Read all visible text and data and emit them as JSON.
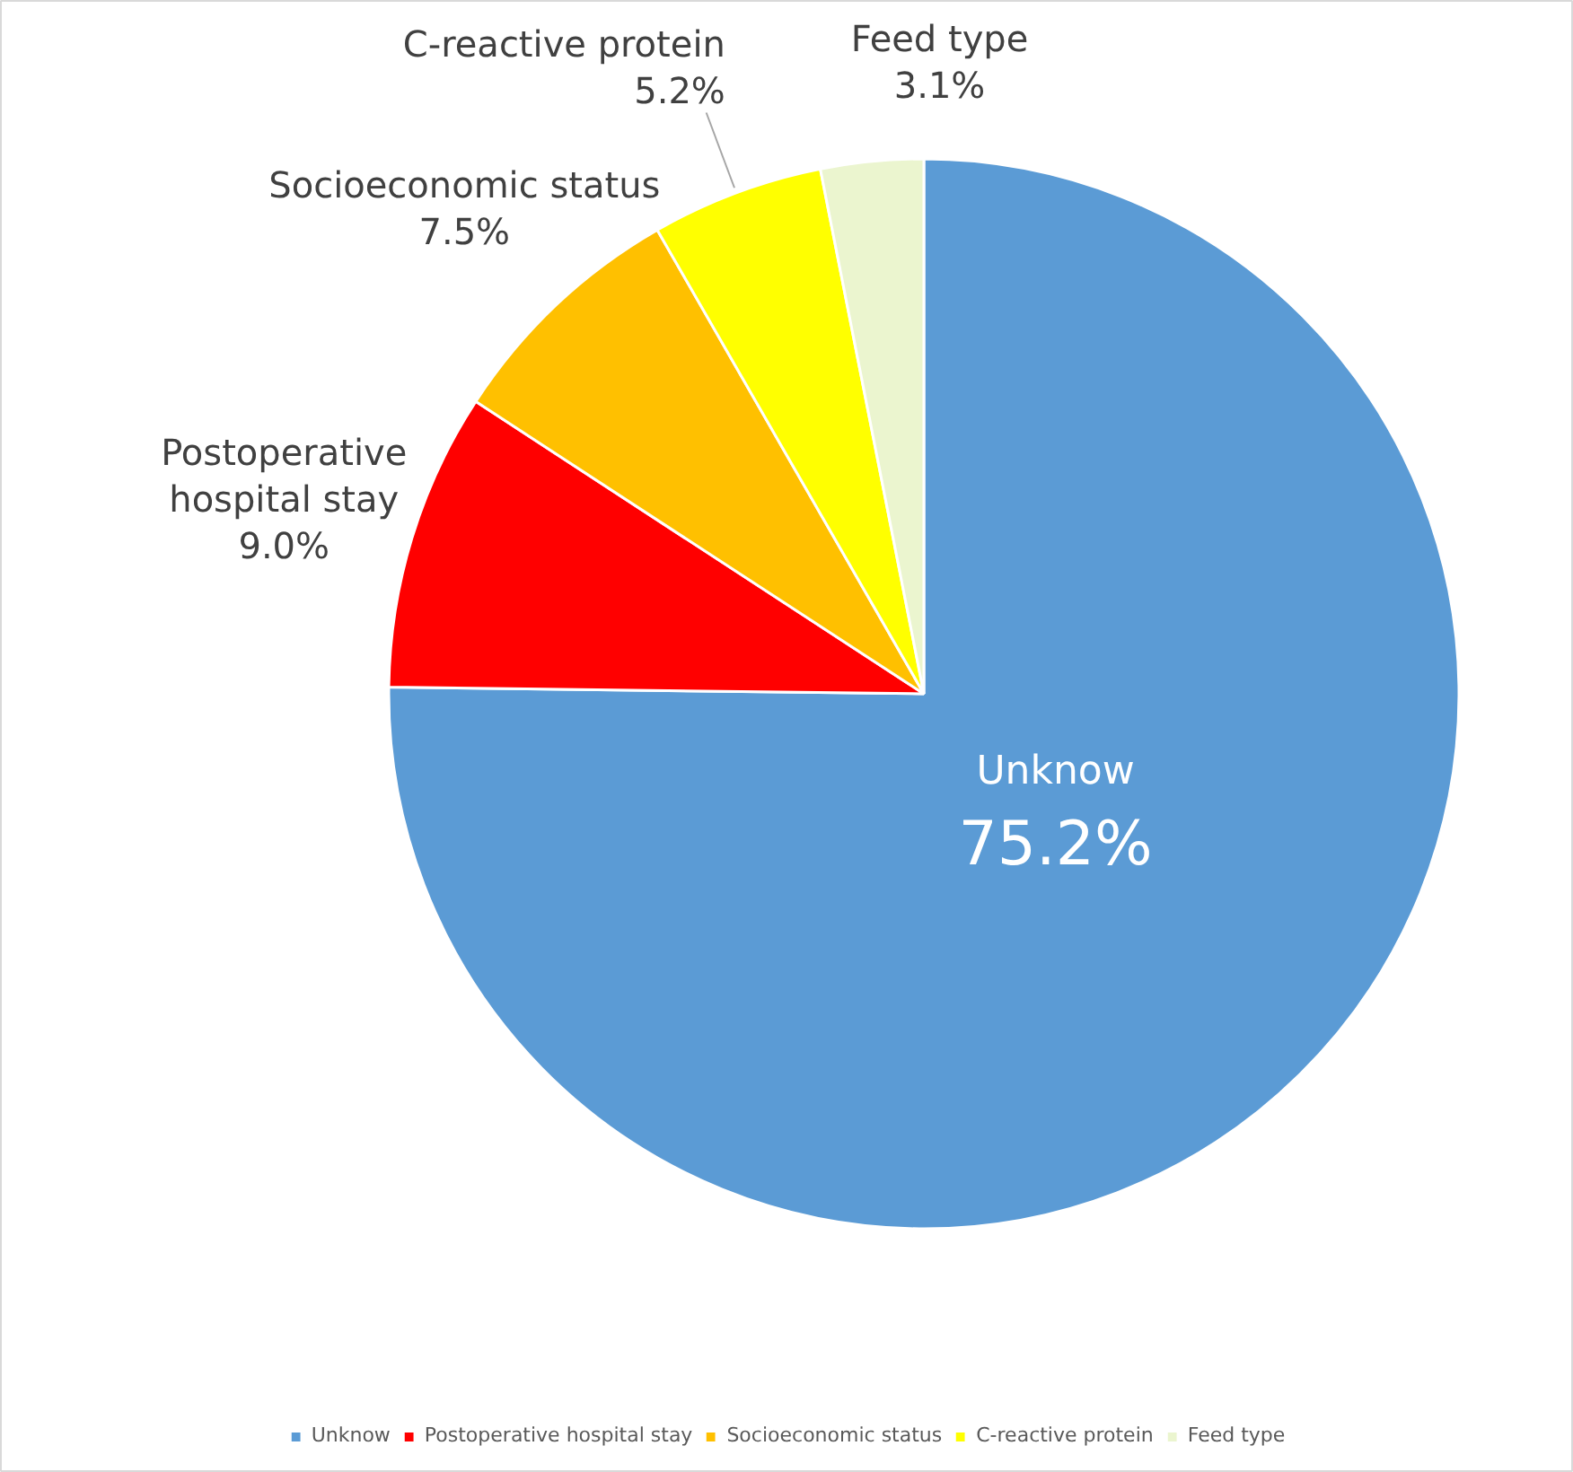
{
  "chart_data": {
    "type": "pie",
    "categories": [
      "Unknow",
      "Postoperative hospital stay",
      "Socioeconomic status",
      "C-reactive protein",
      "Feed type"
    ],
    "values": [
      75.2,
      9.0,
      7.5,
      5.2,
      3.1
    ],
    "value_labels": [
      "75.2%",
      "9.0%",
      "7.5%",
      "5.2%",
      "3.1%"
    ],
    "colors": [
      "#5b9bd5",
      "#ff0000",
      "#ffc000",
      "#ffff00",
      "#ebf5cf"
    ],
    "legend": "bottom"
  }
}
